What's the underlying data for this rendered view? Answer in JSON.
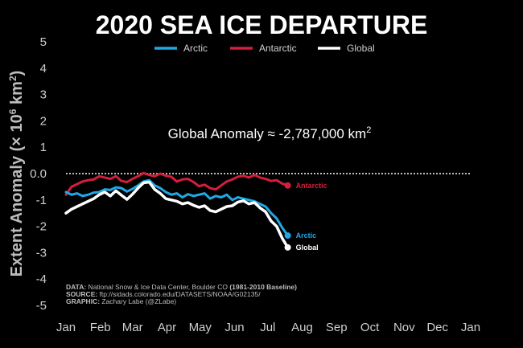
{
  "chart_data": {
    "type": "line",
    "title": "2020 SEA ICE DEPARTURE",
    "ylabel": "Extent Anomaly (× 10",
    "ylabel_exp": "6",
    "ylabel_unit": " km",
    "ylabel_unit_exp": "2",
    "ylabel_close": ")",
    "ylim": [
      -5,
      5
    ],
    "yticks": [
      "5",
      "4",
      "3",
      "2",
      "1",
      "0.0",
      "-1",
      "-2",
      "-3",
      "-4",
      "-5"
    ],
    "x_months": [
      "Jan",
      "Feb",
      "Mar",
      "Apr",
      "May",
      "Jun",
      "Jul",
      "Aug",
      "Sep",
      "Oct",
      "Nov",
      "Dec",
      "Jan"
    ],
    "xlim_days": [
      1,
      366
    ],
    "zero_line": "dotted",
    "legend": {
      "placement": "top-center"
    },
    "annotation": {
      "prefix": "Global Anomaly ≈ -2,787,000 km",
      "exp": "2"
    },
    "series": [
      {
        "name": "Arctic",
        "end_label": "Arctic",
        "color": "#1ea9e6",
        "x": [
          1,
          6,
          11,
          16,
          21,
          26,
          31,
          36,
          41,
          46,
          51,
          56,
          61,
          66,
          71,
          76,
          81,
          86,
          91,
          96,
          101,
          106,
          111,
          116,
          121,
          126,
          131,
          136,
          141,
          146,
          151,
          156,
          161,
          166,
          171,
          176,
          181,
          186,
          191,
          196,
          201
        ],
        "y": [
          -0.7,
          -0.8,
          -0.75,
          -0.85,
          -0.8,
          -0.72,
          -0.7,
          -0.6,
          -0.62,
          -0.52,
          -0.55,
          -0.68,
          -0.58,
          -0.45,
          -0.3,
          -0.25,
          -0.45,
          -0.55,
          -0.7,
          -0.8,
          -0.75,
          -0.9,
          -0.78,
          -0.85,
          -0.8,
          -0.75,
          -0.95,
          -0.85,
          -0.9,
          -0.8,
          -1.0,
          -0.9,
          -0.95,
          -1.0,
          -1.05,
          -1.15,
          -1.25,
          -1.5,
          -1.7,
          -2.05,
          -2.35
        ]
      },
      {
        "name": "Antarctic",
        "end_label": "Antarctic",
        "color": "#d31f3c",
        "x": [
          1,
          6,
          11,
          16,
          21,
          26,
          31,
          36,
          41,
          46,
          51,
          56,
          61,
          66,
          71,
          76,
          81,
          86,
          91,
          96,
          101,
          106,
          111,
          116,
          121,
          126,
          131,
          136,
          141,
          146,
          151,
          156,
          161,
          166,
          171,
          176,
          181,
          186,
          191,
          196,
          201
        ],
        "y": [
          -0.8,
          -0.5,
          -0.4,
          -0.3,
          -0.25,
          -0.22,
          -0.1,
          -0.15,
          -0.2,
          -0.1,
          -0.28,
          -0.32,
          -0.2,
          -0.1,
          0.02,
          -0.05,
          -0.1,
          0.0,
          -0.08,
          -0.12,
          -0.3,
          -0.22,
          -0.2,
          -0.32,
          -0.48,
          -0.42,
          -0.55,
          -0.6,
          -0.45,
          -0.3,
          -0.22,
          -0.12,
          -0.08,
          -0.15,
          -0.05,
          -0.15,
          -0.2,
          -0.28,
          -0.25,
          -0.38,
          -0.45
        ]
      },
      {
        "name": "Global",
        "end_label": "Global",
        "color": "#ffffff",
        "x": [
          1,
          6,
          11,
          16,
          21,
          26,
          31,
          36,
          41,
          46,
          51,
          56,
          61,
          66,
          71,
          76,
          81,
          86,
          91,
          96,
          101,
          106,
          111,
          116,
          121,
          126,
          131,
          136,
          141,
          146,
          151,
          156,
          161,
          166,
          171,
          176,
          181,
          186,
          191,
          196,
          201
        ],
        "y": [
          -1.5,
          -1.35,
          -1.25,
          -1.15,
          -1.05,
          -0.95,
          -0.8,
          -0.7,
          -0.85,
          -0.65,
          -0.82,
          -0.98,
          -0.78,
          -0.55,
          -0.35,
          -0.32,
          -0.6,
          -0.75,
          -0.95,
          -1.0,
          -1.05,
          -1.15,
          -1.1,
          -1.2,
          -1.28,
          -1.22,
          -1.4,
          -1.45,
          -1.35,
          -1.25,
          -1.22,
          -1.08,
          -1.03,
          -1.15,
          -1.1,
          -1.3,
          -1.45,
          -1.8,
          -2.0,
          -2.45,
          -2.8
        ]
      }
    ]
  },
  "credits": [
    {
      "label": "DATA:",
      "text": " National Snow & Ice Data Center, Boulder CO ",
      "extra": "(1981-2010 Baseline)"
    },
    {
      "label": "SOURCE:",
      "text": " ftp://sidads.colorado.edu/DATASETS/NOAA/G02135/",
      "extra": ""
    },
    {
      "label": "GRAPHIC:",
      "text": " Zachary Labe (@ZLabe)",
      "extra": ""
    }
  ]
}
